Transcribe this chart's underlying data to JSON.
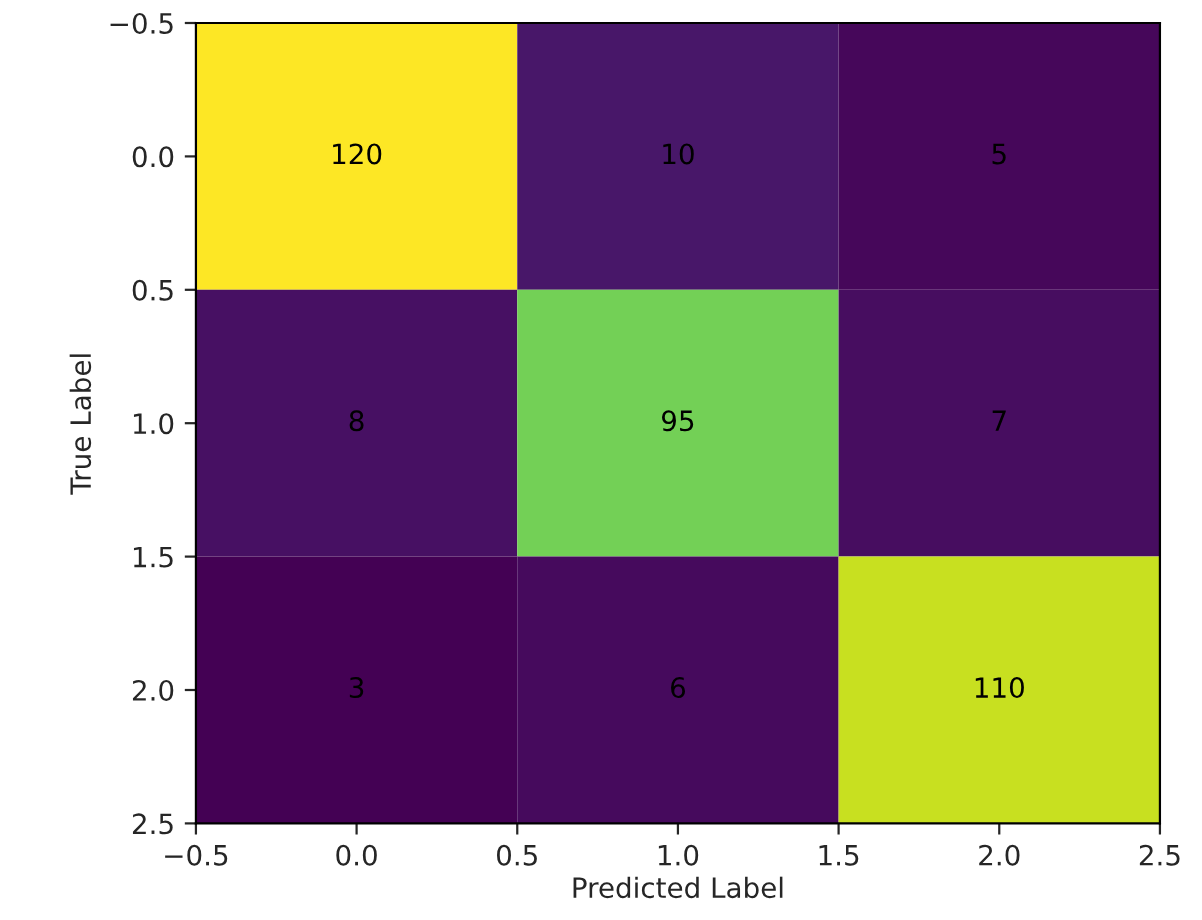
{
  "chart_data": {
    "type": "heatmap",
    "xlabel": "Predicted Label",
    "ylabel": "True Label",
    "x": [
      0,
      1,
      2
    ],
    "y": [
      0,
      1,
      2
    ],
    "cells": [
      [
        120,
        10,
        5
      ],
      [
        8,
        95,
        7
      ],
      [
        3,
        6,
        110
      ]
    ],
    "data_labels": true,
    "xlim": [
      -0.5,
      2.5
    ],
    "ylim": [
      2.5,
      -0.5
    ],
    "xticks": [
      {
        "value": -0.5,
        "label": "−0.5"
      },
      {
        "value": 0,
        "label": "0.0"
      },
      0.5,
      {
        "value": 1,
        "label": "1.0"
      },
      1.5,
      {
        "value": 2,
        "label": "2.0"
      },
      2.5
    ],
    "yticks": [
      {
        "value": -0.5,
        "label": "−0.5"
      },
      {
        "value": 0,
        "label": "0.0"
      },
      0.5,
      {
        "value": 1,
        "label": "1.0"
      },
      1.5,
      {
        "value": 2,
        "label": "2.0"
      },
      2.5
    ],
    "grid": false
  }
}
